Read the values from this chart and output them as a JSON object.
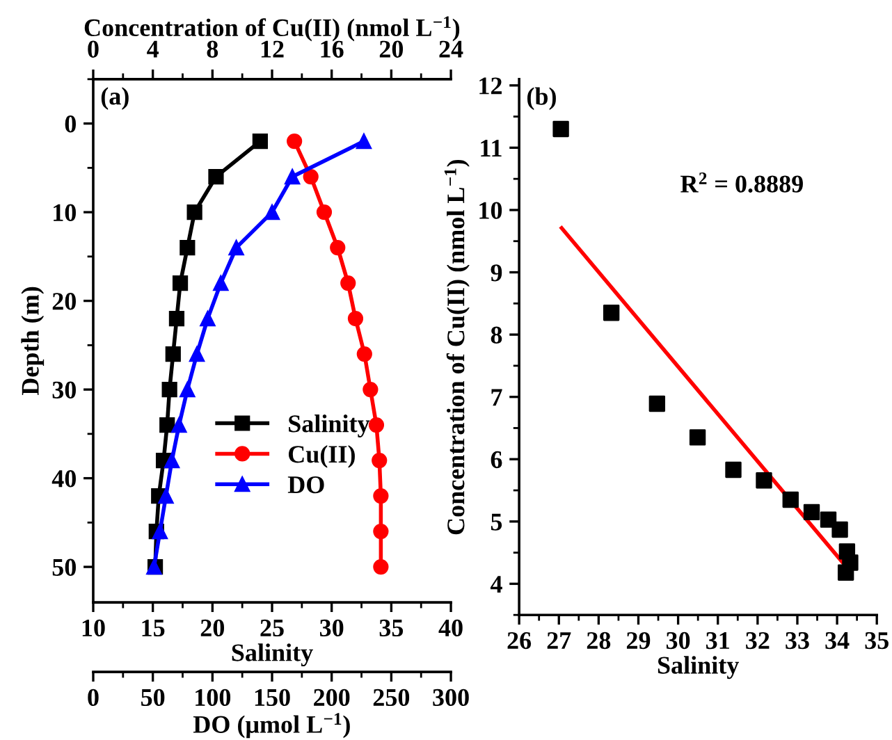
{
  "chart_data": [
    {
      "type": "line",
      "title": "(a)",
      "ylabel": "Depth (m)",
      "xlabel": "Salinity",
      "x2label": "Concentration of Cu(II) (nmol L$^{−1}$)",
      "ylim": [
        54,
        -5
      ],
      "yticks": [
        0,
        10,
        20,
        30,
        40,
        50
      ],
      "xlim": [
        10,
        40
      ],
      "xticks": [
        10,
        15,
        20,
        25,
        30,
        35,
        40
      ],
      "x2lim": [
        0,
        24
      ],
      "x2ticks": [
        0,
        4,
        8,
        12,
        16,
        20,
        24
      ],
      "legend": "bottom",
      "grid": false,
      "line_style": "solid",
      "series": [
        {
          "name": "Salinity",
          "color": "#000000",
          "marker": "square",
          "x": [
            24.0,
            20.3,
            18.5,
            17.9,
            17.3,
            17.0,
            16.7,
            16.4,
            16.2,
            15.9,
            15.5,
            15.3,
            15.2
          ],
          "values": [
            2,
            6,
            10,
            14,
            18,
            22,
            26,
            30,
            34,
            38,
            42,
            46,
            50
          ]
        },
        {
          "name": "Cu(II)",
          "color": "#ff0000",
          "marker": "circle",
          "axis": "x2",
          "x": [
            13.5,
            14.6,
            15.5,
            16.4,
            17.1,
            17.6,
            18.2,
            18.6,
            19.0,
            19.2,
            19.3,
            19.3,
            19.3
          ],
          "values": [
            2,
            6,
            10,
            14,
            18,
            22,
            26,
            30,
            34,
            38,
            42,
            46,
            50
          ]
        }
      ]
    },
    {
      "type": "line",
      "xlabel": "DO (μmol L$^{−1}$)",
      "ylim": [
        54,
        -5
      ],
      "xlim": [
        0,
        300
      ],
      "xticks": [
        0,
        50,
        100,
        150,
        200,
        250,
        300
      ],
      "tick_labels": "x",
      "grid": false,
      "line_style": "solid",
      "series": [
        {
          "name": "DO",
          "color": "#0000ff",
          "marker": "triangle",
          "x": [
            227,
            167,
            150,
            120,
            107,
            96,
            87,
            79,
            72,
            66,
            61,
            56,
            51
          ],
          "values": [
            2,
            6,
            10,
            14,
            18,
            22,
            26,
            30,
            34,
            38,
            42,
            46,
            50
          ]
        }
      ]
    },
    {
      "type": "scatter",
      "title": "(b)",
      "xlabel": "Salinity",
      "ylabel": "Concentration of Cu(II) (nmol L$^{−1}$)",
      "annotations": [
        "R$^{2}$ = 0.8889"
      ],
      "xlim": [
        26,
        35
      ],
      "xticks": [
        26,
        27,
        28,
        29,
        30,
        31,
        32,
        33,
        34,
        35
      ],
      "ylim": [
        3.5,
        12.1
      ],
      "yticks": [
        4,
        5,
        6,
        7,
        8,
        9,
        10,
        11,
        12
      ],
      "grid": false,
      "series": [
        {
          "type": "scatter",
          "color": "#000000",
          "marker": "square",
          "x": [
            27.05,
            28.32,
            29.47,
            30.49,
            31.39,
            32.16,
            32.83,
            33.36,
            33.78,
            34.07,
            34.25,
            34.33,
            34.22
          ],
          "values": [
            11.3,
            8.35,
            6.89,
            6.35,
            5.83,
            5.66,
            5.35,
            5.15,
            5.03,
            4.87,
            4.52,
            4.34,
            4.18
          ]
        },
        {
          "type": "line",
          "color": "#ff0000",
          "marker": "none",
          "x": [
            27.07,
            34.3
          ],
          "values": [
            9.71,
            4.22
          ]
        }
      ]
    }
  ]
}
